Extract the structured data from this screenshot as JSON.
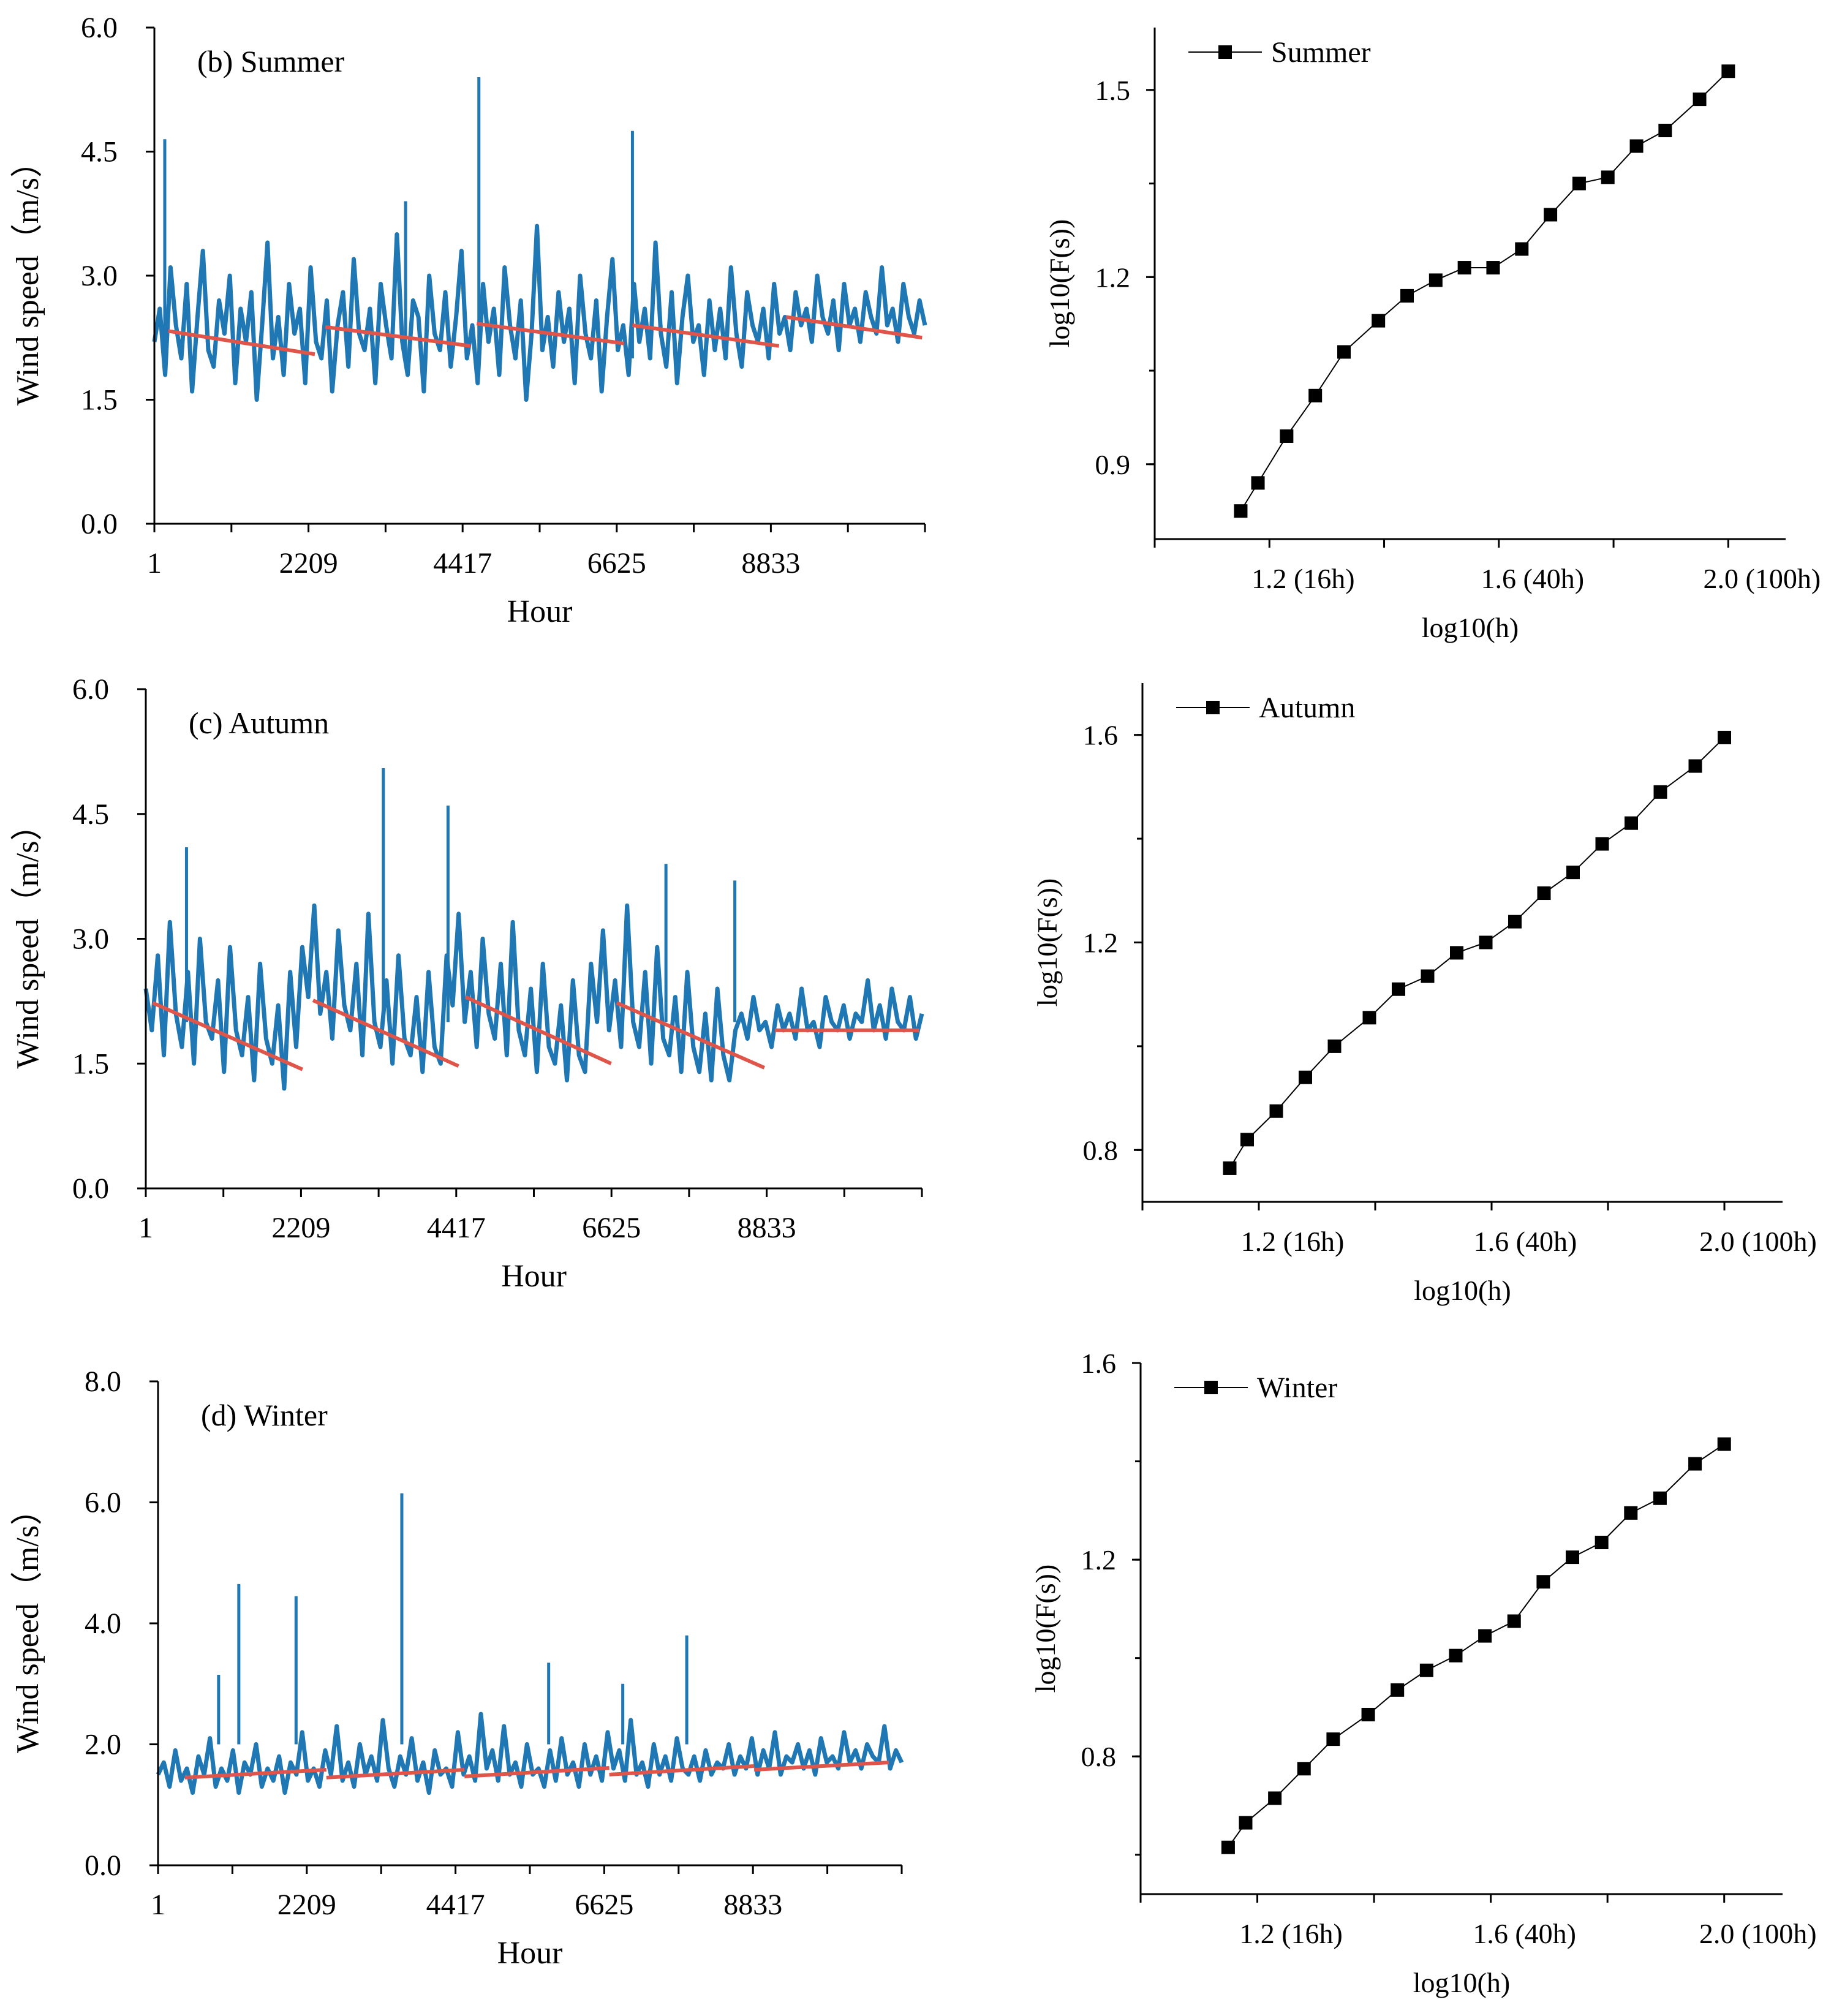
{
  "chart_data": [
    {
      "type": "line",
      "title": "(b) Summer",
      "xlabel": "Hour",
      "ylabel": "Wind speed（m/s）",
      "ylim": [
        0,
        6
      ],
      "yticks": [
        "0.0",
        "1.5",
        "3.0",
        "4.5",
        "6.0"
      ],
      "xticks": [
        "1",
        "2209",
        "4417",
        "6625",
        "8833"
      ],
      "xlim": [
        1,
        11041
      ],
      "series": [
        {
          "color": "#1f77b4",
          "values": [
            2.2,
            2.6,
            1.8,
            3.1,
            2.4,
            2.0,
            2.9,
            1.6,
            2.5,
            3.3,
            2.1,
            1.9,
            2.7,
            2.3,
            3.0,
            1.7,
            2.6,
            2.2,
            2.8,
            1.5,
            2.4,
            3.4,
            2.0,
            2.5,
            1.8,
            2.9,
            2.3,
            2.6,
            1.7,
            3.1,
            2.2,
            2.0,
            2.7,
            1.6,
            2.4,
            2.8,
            1.9,
            3.2,
            2.3,
            2.1,
            2.6,
            1.7,
            2.9,
            2.4,
            2.0,
            3.5,
            2.2,
            1.8,
            2.7,
            2.5,
            1.6,
            3.0,
            2.3,
            2.1,
            2.8,
            1.9,
            2.5,
            3.3,
            2.0,
            2.4,
            1.7,
            2.9,
            2.2,
            2.6,
            1.8,
            3.1,
            2.4,
            2.0,
            2.7,
            1.5,
            2.3,
            3.6,
            2.1,
            2.5,
            1.9,
            2.8,
            2.2,
            2.6,
            1.7,
            3.0,
            2.3,
            2.0,
            2.7,
            1.6,
            2.5,
            3.2,
            2.1,
            2.4,
            1.8,
            2.9,
            2.2,
            2.6,
            2.0,
            3.4,
            2.3,
            1.9,
            2.8,
            1.7,
            2.5,
            3.0,
            2.2,
            2.4,
            1.8,
            2.7,
            2.1,
            2.6,
            2.0,
            3.1,
            2.3,
            1.9,
            2.8,
            2.4,
            2.2,
            2.6,
            2.0,
            2.9,
            2.3,
            2.5,
            2.1,
            2.8,
            2.4,
            2.6,
            2.2,
            3.0,
            2.5,
            2.3,
            2.7,
            2.1,
            2.9,
            2.4,
            2.6,
            2.2,
            2.8,
            2.5,
            2.3,
            3.1,
            2.4,
            2.6,
            2.2,
            2.9,
            2.5,
            2.3,
            2.7,
            2.4
          ]
        }
      ],
      "spikes": [
        {
          "x": 150,
          "y": 4.65
        },
        {
          "x": 4650,
          "y": 5.4
        },
        {
          "x": 6850,
          "y": 4.75
        },
        {
          "x": 3600,
          "y": 3.9
        }
      ],
      "trend_lines": [
        {
          "x": [
            200,
            2300
          ],
          "y": [
            2.33,
            2.05
          ]
        },
        {
          "x": [
            2450,
            4530
          ],
          "y": [
            2.38,
            2.15
          ]
        },
        {
          "x": [
            4620,
            6730
          ],
          "y": [
            2.42,
            2.18
          ]
        },
        {
          "x": [
            6850,
            8950
          ],
          "y": [
            2.4,
            2.15
          ]
        },
        {
          "x": [
            9050,
            11000
          ],
          "y": [
            2.5,
            2.25
          ]
        }
      ],
      "trend_color": "#e0554a"
    },
    {
      "type": "line",
      "title": "",
      "xlabel": "log10(h)",
      "ylabel": "log10(F(s))",
      "xlim": [
        1.0,
        2.1
      ],
      "ylim": [
        0.78,
        1.6
      ],
      "xticks": [
        "1.2 (16h)",
        "1.6 (40h)",
        "2.0 (100h)"
      ],
      "xtick_values": [
        1.2,
        1.6,
        2.0
      ],
      "yticks": [
        "0.9",
        "1.2",
        "1.5"
      ],
      "ytick_values": [
        0.9,
        1.2,
        1.5
      ],
      "legend": "top-left",
      "series": [
        {
          "name": "Summer",
          "x": [
            1.15,
            1.18,
            1.23,
            1.28,
            1.33,
            1.39,
            1.44,
            1.49,
            1.54,
            1.59,
            1.64,
            1.69,
            1.74,
            1.79,
            1.84,
            1.89,
            1.95,
            2.0
          ],
          "y": [
            0.825,
            0.87,
            0.945,
            1.01,
            1.08,
            1.13,
            1.17,
            1.195,
            1.215,
            1.215,
            1.245,
            1.3,
            1.35,
            1.36,
            1.41,
            1.435,
            1.485,
            1.53
          ]
        }
      ]
    },
    {
      "type": "line",
      "title": "(c) Autumn",
      "xlabel": "Hour",
      "ylabel": "Wind speed（m/s）",
      "ylim": [
        0,
        6
      ],
      "yticks": [
        "0.0",
        "1.5",
        "3.0",
        "4.5",
        "6.0"
      ],
      "xticks": [
        "1",
        "2209",
        "4417",
        "6625",
        "8833"
      ],
      "xlim": [
        1,
        11041
      ],
      "series": [
        {
          "color": "#1f77b4",
          "values": [
            2.4,
            1.9,
            2.8,
            1.6,
            3.2,
            2.1,
            1.7,
            2.6,
            1.5,
            3.0,
            2.0,
            1.8,
            2.5,
            1.4,
            2.9,
            1.9,
            1.6,
            2.3,
            1.3,
            2.7,
            1.8,
            1.5,
            2.2,
            1.2,
            2.6,
            1.7,
            2.9,
            2.3,
            3.4,
            2.1,
            2.6,
            1.8,
            3.1,
            2.2,
            1.9,
            2.7,
            1.6,
            3.3,
            2.0,
            1.7,
            2.5,
            1.5,
            2.8,
            1.8,
            1.6,
            2.3,
            1.4,
            2.6,
            1.7,
            1.5,
            2.8,
            2.2,
            3.3,
            2.0,
            2.6,
            1.7,
            3.0,
            2.1,
            1.8,
            2.7,
            1.6,
            3.2,
            1.9,
            1.6,
            2.4,
            1.4,
            2.7,
            1.7,
            1.5,
            2.2,
            1.3,
            2.5,
            1.6,
            1.4,
            2.7,
            2.0,
            3.1,
            1.9,
            2.5,
            1.7,
            3.4,
            2.0,
            1.7,
            2.6,
            1.5,
            2.9,
            1.8,
            1.6,
            2.3,
            1.4,
            2.6,
            1.7,
            1.4,
            2.1,
            1.3,
            2.4,
            1.6,
            1.3,
            1.9,
            2.1,
            1.8,
            2.3,
            1.9,
            2.0,
            1.7,
            2.2,
            1.9,
            2.1,
            1.8,
            2.4,
            1.9,
            2.0,
            1.7,
            2.3,
            2.0,
            1.9,
            2.2,
            1.8,
            2.1,
            2.0,
            2.5,
            1.9,
            2.2,
            1.8,
            2.4,
            2.0,
            1.9,
            2.3,
            1.8,
            2.1
          ]
        }
      ],
      "spikes": [
        {
          "x": 580,
          "y": 4.1
        },
        {
          "x": 3380,
          "y": 5.05
        },
        {
          "x": 4300,
          "y": 4.6
        },
        {
          "x": 7400,
          "y": 3.9
        },
        {
          "x": 8380,
          "y": 3.7
        }
      ],
      "trend_lines": [
        {
          "x": [
            100,
            2230
          ],
          "y": [
            2.23,
            1.43
          ]
        },
        {
          "x": [
            2380,
            4450
          ],
          "y": [
            2.26,
            1.47
          ]
        },
        {
          "x": [
            4550,
            6620
          ],
          "y": [
            2.3,
            1.5
          ]
        },
        {
          "x": [
            6700,
            8800
          ],
          "y": [
            2.23,
            1.45
          ]
        },
        {
          "x": [
            8950,
            11000
          ],
          "y": [
            1.9,
            1.9
          ]
        }
      ],
      "trend_color": "#e0554a"
    },
    {
      "type": "line",
      "title": "",
      "xlabel": "log10(h)",
      "ylabel": "log10(F(s))",
      "xlim": [
        1.0,
        2.1
      ],
      "ylim": [
        0.7,
        1.7
      ],
      "xticks": [
        "1.2 (16h)",
        "1.6 (40h)",
        "2.0 (100h)"
      ],
      "xtick_values": [
        1.2,
        1.6,
        2.0
      ],
      "yticks": [
        "0.8",
        "1.2",
        "1.6"
      ],
      "ytick_values": [
        0.8,
        1.2,
        1.6
      ],
      "legend": "top-left",
      "series": [
        {
          "name": "Autumn",
          "x": [
            1.15,
            1.18,
            1.23,
            1.28,
            1.33,
            1.39,
            1.44,
            1.49,
            1.54,
            1.59,
            1.64,
            1.69,
            1.74,
            1.79,
            1.84,
            1.89,
            1.95,
            2.0
          ],
          "y": [
            0.765,
            0.82,
            0.875,
            0.94,
            1.0,
            1.055,
            1.11,
            1.135,
            1.18,
            1.2,
            1.24,
            1.295,
            1.335,
            1.39,
            1.43,
            1.49,
            1.54,
            1.595
          ]
        }
      ]
    },
    {
      "type": "line",
      "title": "(d) Winter",
      "xlabel": "Hour",
      "ylabel": "Wind speed（m/s）",
      "ylim": [
        0,
        8
      ],
      "yticks": [
        "0.0",
        "2.0",
        "4.0",
        "6.0",
        "8.0"
      ],
      "xticks": [
        "1",
        "2209",
        "4417",
        "6625",
        "8833"
      ],
      "xlim": [
        1,
        11041
      ],
      "series": [
        {
          "color": "#1f77b4",
          "values": [
            1.5,
            1.7,
            1.3,
            1.9,
            1.4,
            1.6,
            1.2,
            1.8,
            1.5,
            2.1,
            1.3,
            1.6,
            1.4,
            1.9,
            1.2,
            1.7,
            1.5,
            2.0,
            1.3,
            1.6,
            1.4,
            1.8,
            1.2,
            1.7,
            1.5,
            2.2,
            1.4,
            1.6,
            1.3,
            1.9,
            1.5,
            2.3,
            1.4,
            1.7,
            1.3,
            2.0,
            1.5,
            1.8,
            1.4,
            2.4,
            1.6,
            1.3,
            1.8,
            1.5,
            2.1,
            1.4,
            1.7,
            1.2,
            1.9,
            1.5,
            1.6,
            1.3,
            2.2,
            1.5,
            1.8,
            1.4,
            2.5,
            1.6,
            1.9,
            1.4,
            2.3,
            1.5,
            1.7,
            1.3,
            2.0,
            1.5,
            1.6,
            1.3,
            1.9,
            1.4,
            2.1,
            1.5,
            1.7,
            1.3,
            2.0,
            1.5,
            1.8,
            1.4,
            2.2,
            1.6,
            1.9,
            1.4,
            2.4,
            1.5,
            1.7,
            1.3,
            2.0,
            1.5,
            1.8,
            1.4,
            2.1,
            1.6,
            1.5,
            1.8,
            1.4,
            1.9,
            1.5,
            1.7,
            1.6,
            2.0,
            1.5,
            1.8,
            1.6,
            2.1,
            1.5,
            1.9,
            1.6,
            2.2,
            1.5,
            1.8,
            1.7,
            2.0,
            1.6,
            1.9,
            1.5,
            2.1,
            1.7,
            1.8,
            1.6,
            2.2,
            1.7,
            1.9,
            1.6,
            2.0,
            1.8,
            1.7,
            2.3,
            1.6,
            1.9,
            1.7
          ]
        }
      ],
      "spikes": [
        {
          "x": 1200,
          "y": 4.65
        },
        {
          "x": 2050,
          "y": 4.45
        },
        {
          "x": 3620,
          "y": 6.15
        },
        {
          "x": 5800,
          "y": 3.35
        },
        {
          "x": 7850,
          "y": 3.8
        },
        {
          "x": 900,
          "y": 3.15
        },
        {
          "x": 6900,
          "y": 3.0
        }
      ],
      "trend_lines": [
        {
          "x": [
            400,
            2500
          ],
          "y": [
            1.45,
            1.58
          ]
        },
        {
          "x": [
            2500,
            4550
          ],
          "y": [
            1.45,
            1.58
          ]
        },
        {
          "x": [
            4550,
            6700
          ],
          "y": [
            1.47,
            1.61
          ]
        },
        {
          "x": [
            6700,
            8850
          ],
          "y": [
            1.5,
            1.64
          ]
        },
        {
          "x": [
            8850,
            10850
          ],
          "y": [
            1.58,
            1.7
          ]
        }
      ],
      "trend_color": "#e0554a"
    },
    {
      "type": "line",
      "title": "",
      "xlabel": "log10(h)",
      "ylabel": "log10(F(s))",
      "xlim": [
        1.0,
        2.1
      ],
      "ylim": [
        0.52,
        1.6
      ],
      "xticks": [
        "1.2 (16h)",
        "1.6 (40h)",
        "2.0 (100h)"
      ],
      "xtick_values": [
        1.2,
        1.6,
        2.0
      ],
      "yticks": [
        "0.8",
        "1.2",
        "1.6"
      ],
      "ytick_values": [
        0.8,
        1.2,
        1.6
      ],
      "legend": "top-left",
      "series": [
        {
          "name": "Winter",
          "x": [
            1.15,
            1.18,
            1.23,
            1.28,
            1.33,
            1.39,
            1.44,
            1.49,
            1.54,
            1.59,
            1.64,
            1.69,
            1.74,
            1.79,
            1.84,
            1.89,
            1.95,
            2.0
          ],
          "y": [
            0.615,
            0.665,
            0.715,
            0.775,
            0.835,
            0.885,
            0.935,
            0.975,
            1.005,
            1.045,
            1.075,
            1.155,
            1.205,
            1.235,
            1.295,
            1.325,
            1.395,
            1.435
          ]
        }
      ]
    }
  ]
}
